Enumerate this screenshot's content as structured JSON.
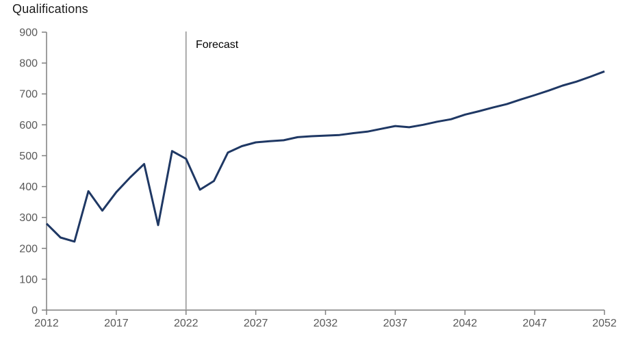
{
  "page": {
    "title": "Qualifications",
    "forecast_label": "Forecast"
  },
  "chart_data": {
    "type": "line",
    "title": "Qualifications",
    "xlabel": "",
    "ylabel": "Qualifications",
    "grid": false,
    "legend": "none",
    "xlim": [
      2012,
      2052
    ],
    "ylim": [
      0,
      900
    ],
    "x_ticks": [
      2012,
      2017,
      2022,
      2027,
      2032,
      2037,
      2042,
      2047,
      2052
    ],
    "y_ticks": [
      0,
      100,
      200,
      300,
      400,
      500,
      600,
      700,
      800,
      900
    ],
    "forecast_start": 2022,
    "annotations": [
      {
        "text": "Forecast",
        "x": 2022,
        "position": "right-of-divider-top"
      }
    ],
    "x": [
      2012,
      2013,
      2014,
      2015,
      2016,
      2017,
      2018,
      2019,
      2020,
      2021,
      2022,
      2023,
      2024,
      2025,
      2026,
      2027,
      2028,
      2029,
      2030,
      2031,
      2032,
      2033,
      2034,
      2035,
      2036,
      2037,
      2038,
      2039,
      2040,
      2041,
      2042,
      2043,
      2044,
      2045,
      2046,
      2047,
      2048,
      2049,
      2050,
      2051,
      2052
    ],
    "series": [
      {
        "name": "Qualifications",
        "values": [
          280,
          235,
          222,
          385,
          322,
          382,
          430,
          473,
          275,
          515,
          490,
          390,
          418,
          510,
          531,
          543,
          547,
          550,
          560,
          563,
          565,
          567,
          573,
          578,
          587,
          596,
          592,
          600,
          610,
          618,
          633,
          644,
          656,
          667,
          682,
          696,
          711,
          727,
          740,
          756,
          773
        ]
      }
    ],
    "colors": {
      "line": "#1f3864",
      "axis": "#7f7f7f",
      "tick_label": "#595959",
      "forecast_divider": "#a0a0a0",
      "title_text": "#1a1a1a",
      "forecast_text": "#000000"
    }
  }
}
